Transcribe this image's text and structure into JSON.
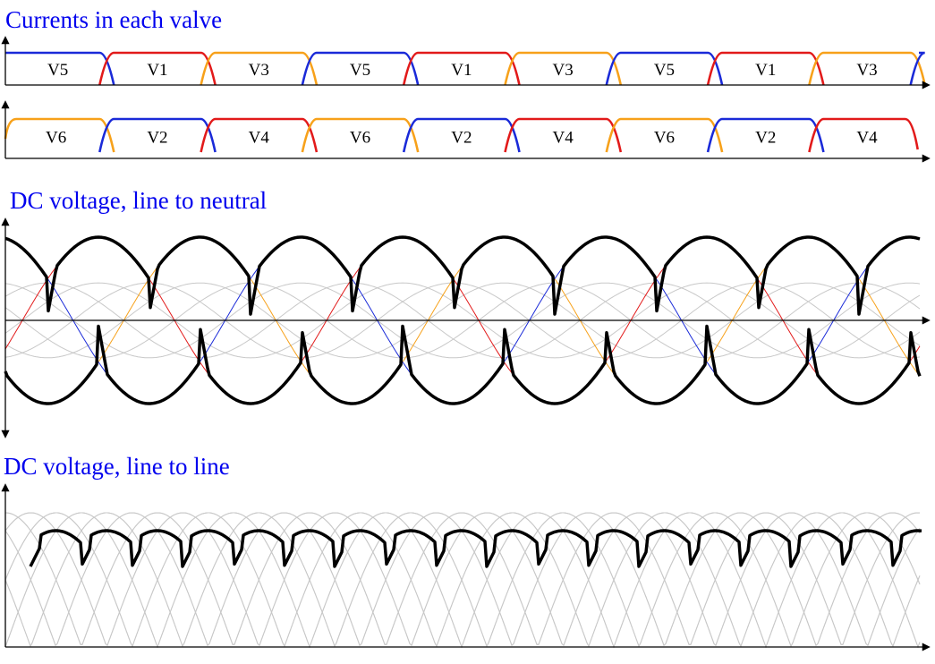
{
  "titles": {
    "currents": "Currents in each valve",
    "ln": "DC voltage, line to neutral",
    "ll": "DC voltage, line to line"
  },
  "colors": {
    "phase_a": "#e21a1a",
    "phase_b": "#f7a11a",
    "phase_c": "#1a2ad8",
    "output": "#000000",
    "background_curve": "#c8c8c8",
    "title": "#0000ee"
  },
  "valves": {
    "top_row": [
      "V5",
      "V1",
      "V3",
      "V5",
      "V1",
      "V3",
      "V5",
      "V1",
      "V3"
    ],
    "bottom_row": [
      "V6",
      "V2",
      "V4",
      "V6",
      "V2",
      "V4",
      "V6",
      "V2",
      "V4"
    ]
  }
}
